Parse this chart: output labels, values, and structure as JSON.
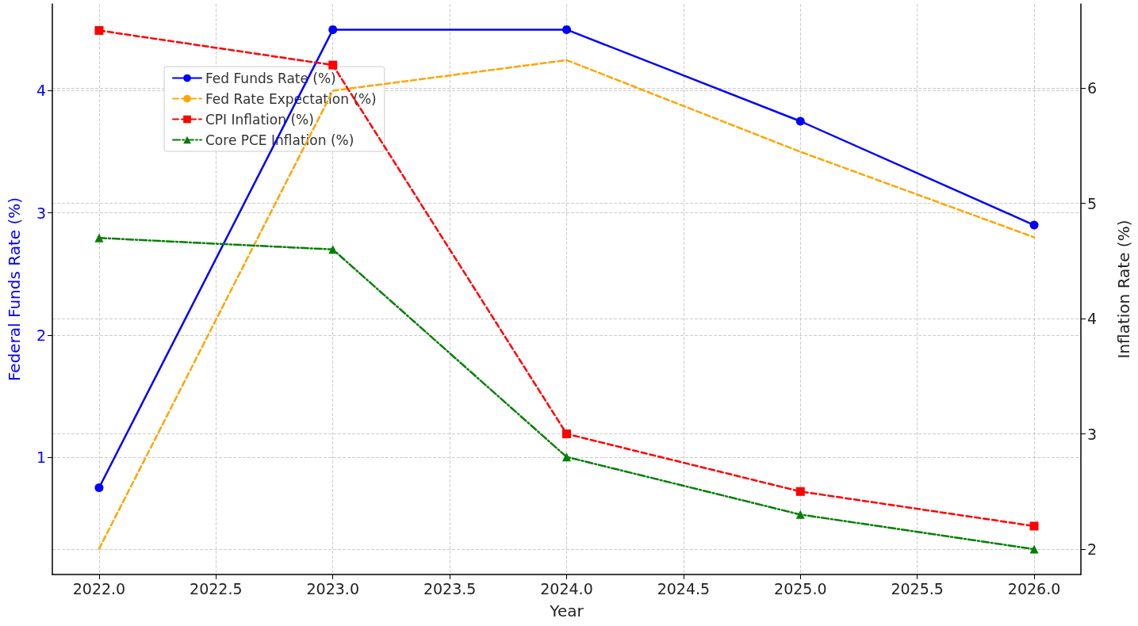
{
  "chart_data": {
    "type": "line",
    "xlabel": "Year",
    "ylabel": "Federal Funds Rate (%)",
    "y2label": "Inflation Rate (%)",
    "x": [
      2022,
      2023,
      2024,
      2025,
      2026
    ],
    "xlim": [
      2021.8,
      2026.2
    ],
    "xticks": [
      {
        "value": 2022,
        "label": "2022.0"
      },
      {
        "value": 2022.5,
        "label": "2022.5"
      },
      {
        "value": 2023,
        "label": "2023.0"
      },
      {
        "value": 2023.5,
        "label": "2023.5"
      },
      {
        "value": 2024,
        "label": "2024.0"
      },
      {
        "value": 2024.5,
        "label": "2024.5"
      },
      {
        "value": 2025,
        "label": "2025.0"
      },
      {
        "value": 2025.5,
        "label": "2025.5"
      },
      {
        "value": 2026,
        "label": "2026.0"
      }
    ],
    "ylim": [
      0.04,
      4.71
    ],
    "yticks": [
      1,
      2,
      3,
      4
    ],
    "y2lim": [
      1.78,
      6.73
    ],
    "y2ticks": [
      2,
      3,
      4,
      5,
      6
    ],
    "grid": true,
    "legend": "top left",
    "series": [
      {
        "name": "Fed Funds Rate (%)",
        "color": "#0000ff",
        "values": [
          0.75,
          4.5,
          4.5,
          3.75,
          2.9
        ],
        "marker": "circle",
        "line_style": "solid"
      },
      {
        "name": "Fed Rate Expectation (%)",
        "color": "#ffa500",
        "values": [
          0.25,
          4.0,
          4.25,
          3.5,
          2.8
        ],
        "marker": "none",
        "line_style": "dashed"
      },
      {
        "name": "CPI Inflation (%)",
        "color": "#ff0000",
        "values": [
          6.5,
          6.2,
          3.0,
          2.5,
          2.2
        ],
        "marker": "square",
        "line_style": "dashed",
        "axis": "y2"
      },
      {
        "name": "Core PCE Inflation (%)",
        "color": "#008000",
        "values": [
          4.7,
          4.6,
          2.8,
          2.3,
          2.0
        ],
        "marker": "triangle",
        "line_style": "dashdot",
        "axis": "y2"
      }
    ]
  }
}
